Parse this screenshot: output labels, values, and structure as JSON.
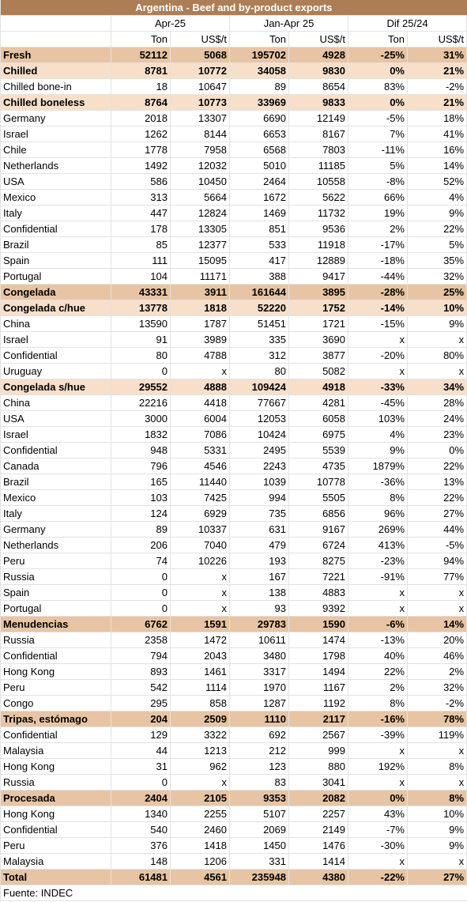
{
  "title": "Argentina - Beef and by-product exports",
  "period_headers": [
    "Apr-25",
    "Jan-Apr 25",
    "Dif 25/24"
  ],
  "unit_headers": [
    "Ton",
    "US$/t",
    "Ton",
    "US$/t",
    "Ton",
    "US$/t"
  ],
  "rows": [
    {
      "type": "cat",
      "label": "Fresh",
      "v": [
        "52112",
        "5068",
        "195702",
        "4928",
        "-25%",
        "31%"
      ]
    },
    {
      "type": "subcat",
      "label": "Chilled",
      "v": [
        "8781",
        "10772",
        "34058",
        "9830",
        "0%",
        "21%"
      ]
    },
    {
      "type": "row",
      "label": "Chilled bone-in",
      "v": [
        "18",
        "10647",
        "89",
        "8654",
        "83%",
        "-2%"
      ]
    },
    {
      "type": "subcat",
      "label": "Chilled boneless",
      "v": [
        "8764",
        "10773",
        "33969",
        "9833",
        "0%",
        "21%"
      ]
    },
    {
      "type": "row",
      "label": "Germany",
      "v": [
        "2018",
        "13307",
        "6690",
        "12149",
        "-5%",
        "18%"
      ]
    },
    {
      "type": "row",
      "label": "Israel",
      "v": [
        "1262",
        "8144",
        "6653",
        "8167",
        "7%",
        "41%"
      ]
    },
    {
      "type": "row",
      "label": "Chile",
      "v": [
        "1778",
        "7958",
        "6568",
        "7803",
        "-11%",
        "16%"
      ]
    },
    {
      "type": "row",
      "label": "Netherlands",
      "v": [
        "1492",
        "12032",
        "5010",
        "11185",
        "5%",
        "14%"
      ]
    },
    {
      "type": "row",
      "label": "USA",
      "v": [
        "586",
        "10450",
        "2464",
        "10558",
        "-8%",
        "52%"
      ]
    },
    {
      "type": "row",
      "label": "Mexico",
      "v": [
        "313",
        "5664",
        "1672",
        "5622",
        "66%",
        "4%"
      ]
    },
    {
      "type": "row",
      "label": "Italy",
      "v": [
        "447",
        "12824",
        "1469",
        "11732",
        "19%",
        "9%"
      ]
    },
    {
      "type": "row",
      "label": "Confidential",
      "v": [
        "178",
        "13305",
        "851",
        "9536",
        "2%",
        "22%"
      ]
    },
    {
      "type": "row",
      "label": "Brazil",
      "v": [
        "85",
        "12377",
        "533",
        "11918",
        "-17%",
        "5%"
      ]
    },
    {
      "type": "row",
      "label": "Spain",
      "v": [
        "111",
        "15095",
        "417",
        "12889",
        "-18%",
        "35%"
      ]
    },
    {
      "type": "row",
      "label": "Portugal",
      "v": [
        "104",
        "11171",
        "388",
        "9417",
        "-44%",
        "32%"
      ]
    },
    {
      "type": "cat",
      "label": "Congelada",
      "v": [
        "43331",
        "3911",
        "161644",
        "3895",
        "-28%",
        "25%"
      ]
    },
    {
      "type": "subcat",
      "label": "Congelada c/hue",
      "v": [
        "13778",
        "1818",
        "52220",
        "1752",
        "-14%",
        "10%"
      ]
    },
    {
      "type": "row",
      "label": "China",
      "v": [
        "13590",
        "1787",
        "51451",
        "1721",
        "-15%",
        "9%"
      ]
    },
    {
      "type": "row",
      "label": "Israel",
      "v": [
        "91",
        "3989",
        "335",
        "3690",
        "x",
        "x"
      ]
    },
    {
      "type": "row",
      "label": "Confidential",
      "v": [
        "80",
        "4788",
        "312",
        "3877",
        "-20%",
        "80%"
      ]
    },
    {
      "type": "row",
      "label": "Uruguay",
      "v": [
        "0",
        "x",
        "80",
        "5082",
        "x",
        "x"
      ]
    },
    {
      "type": "subcat",
      "label": "Congelada s/hue",
      "v": [
        "29552",
        "4888",
        "109424",
        "4918",
        "-33%",
        "34%"
      ]
    },
    {
      "type": "row",
      "label": "China",
      "v": [
        "22216",
        "4418",
        "77667",
        "4281",
        "-45%",
        "28%"
      ]
    },
    {
      "type": "row",
      "label": "USA",
      "v": [
        "3000",
        "6004",
        "12053",
        "6058",
        "103%",
        "24%"
      ]
    },
    {
      "type": "row",
      "label": "Israel",
      "v": [
        "1832",
        "7086",
        "10424",
        "6975",
        "4%",
        "23%"
      ]
    },
    {
      "type": "row",
      "label": "Confidential",
      "v": [
        "948",
        "5331",
        "2495",
        "5539",
        "9%",
        "0%"
      ]
    },
    {
      "type": "row",
      "label": "Canada",
      "v": [
        "796",
        "4546",
        "2243",
        "4735",
        "1879%",
        "22%"
      ]
    },
    {
      "type": "row",
      "label": "Brazil",
      "v": [
        "165",
        "11440",
        "1039",
        "10778",
        "-36%",
        "13%"
      ]
    },
    {
      "type": "row",
      "label": "Mexico",
      "v": [
        "103",
        "7425",
        "994",
        "5505",
        "8%",
        "22%"
      ]
    },
    {
      "type": "row",
      "label": "Italy",
      "v": [
        "124",
        "6929",
        "735",
        "6856",
        "96%",
        "27%"
      ]
    },
    {
      "type": "row",
      "label": "Germany",
      "v": [
        "89",
        "10337",
        "631",
        "9167",
        "269%",
        "44%"
      ]
    },
    {
      "type": "row",
      "label": "Netherlands",
      "v": [
        "206",
        "7040",
        "479",
        "6724",
        "413%",
        "-5%"
      ]
    },
    {
      "type": "row",
      "label": "Peru",
      "v": [
        "74",
        "10226",
        "193",
        "8275",
        "-23%",
        "94%"
      ]
    },
    {
      "type": "row",
      "label": "Russia",
      "v": [
        "0",
        "x",
        "167",
        "7221",
        "-91%",
        "77%"
      ]
    },
    {
      "type": "row",
      "label": "Spain",
      "v": [
        "0",
        "x",
        "138",
        "4883",
        "x",
        "x"
      ]
    },
    {
      "type": "row",
      "label": "Portugal",
      "v": [
        "0",
        "x",
        "93",
        "9392",
        "x",
        "x"
      ]
    },
    {
      "type": "cat",
      "label": "Menudencias",
      "v": [
        "6762",
        "1591",
        "29783",
        "1590",
        "-6%",
        "14%"
      ]
    },
    {
      "type": "row",
      "label": "Russia",
      "v": [
        "2358",
        "1472",
        "10611",
        "1474",
        "-13%",
        "20%"
      ]
    },
    {
      "type": "row",
      "label": "Confidential",
      "v": [
        "794",
        "2043",
        "3480",
        "1798",
        "40%",
        "46%"
      ]
    },
    {
      "type": "row",
      "label": "Hong Kong",
      "v": [
        "893",
        "1461",
        "3317",
        "1494",
        "22%",
        "2%"
      ]
    },
    {
      "type": "row",
      "label": "Peru",
      "v": [
        "542",
        "1114",
        "1970",
        "1167",
        "2%",
        "32%"
      ]
    },
    {
      "type": "row",
      "label": "Congo",
      "v": [
        "295",
        "858",
        "1287",
        "1192",
        "8%",
        "-2%"
      ]
    },
    {
      "type": "cat",
      "label": "Tripas, estómago",
      "v": [
        "204",
        "2509",
        "1110",
        "2117",
        "-16%",
        "78%"
      ]
    },
    {
      "type": "row",
      "label": "Confidential",
      "v": [
        "129",
        "3322",
        "692",
        "2567",
        "-39%",
        "119%"
      ]
    },
    {
      "type": "row",
      "label": "Malaysia",
      "v": [
        "44",
        "1213",
        "212",
        "999",
        "x",
        "x"
      ]
    },
    {
      "type": "row",
      "label": "Hong Kong",
      "v": [
        "31",
        "962",
        "123",
        "880",
        "192%",
        "8%"
      ]
    },
    {
      "type": "row",
      "label": "Russia",
      "v": [
        "0",
        "x",
        "83",
        "3041",
        "x",
        "x"
      ]
    },
    {
      "type": "cat",
      "label": "Procesada",
      "v": [
        "2404",
        "2105",
        "9353",
        "2082",
        "0%",
        "8%"
      ]
    },
    {
      "type": "row",
      "label": "Hong Kong",
      "v": [
        "1340",
        "2255",
        "5107",
        "2257",
        "43%",
        "10%"
      ]
    },
    {
      "type": "row",
      "label": "Confidential",
      "v": [
        "540",
        "2460",
        "2069",
        "2149",
        "-7%",
        "9%"
      ]
    },
    {
      "type": "row",
      "label": "Peru",
      "v": [
        "376",
        "1418",
        "1450",
        "1476",
        "-30%",
        "9%"
      ]
    },
    {
      "type": "row",
      "label": "Malaysia",
      "v": [
        "148",
        "1206",
        "331",
        "1414",
        "x",
        "x"
      ]
    },
    {
      "type": "total",
      "label": "Total",
      "v": [
        "61481",
        "4561",
        "235948",
        "4380",
        "-22%",
        "27%"
      ]
    }
  ],
  "source": "Fuente: INDEC",
  "colors": {
    "title_bg": "#ad7e55",
    "category_bg": "#e7c5a4",
    "subcategory_bg": "#f8dfca"
  }
}
